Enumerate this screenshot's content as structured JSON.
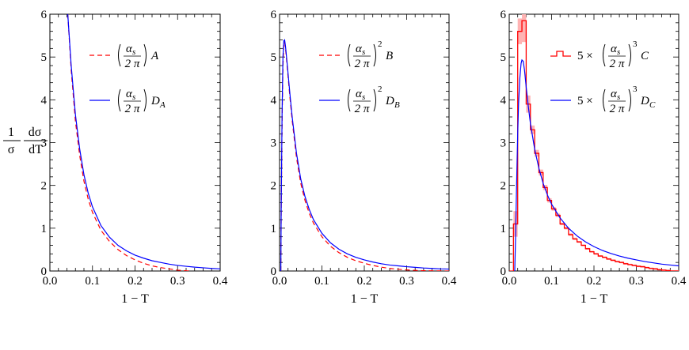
{
  "y_axis_label": {
    "numerator": "1",
    "fraction_top": "dσ",
    "denominator_left": "σ",
    "denominator_right": "dT"
  },
  "chart_data": [
    {
      "type": "line",
      "panel": "left",
      "xlabel": "1 − T",
      "ylabel": "(1/σ) dσ/dT",
      "xlim": [
        0.0,
        0.4
      ],
      "ylim": [
        0,
        6
      ],
      "xticks": [
        "0.0",
        "0.1",
        "0.2",
        "0.3",
        "0.4"
      ],
      "yticks": [
        "0",
        "1",
        "2",
        "3",
        "4",
        "5",
        "6"
      ],
      "grid": false,
      "legend_position": "top-right",
      "series": [
        {
          "name": "(αs/2π) A",
          "style": "dashed",
          "color": "#ff0000",
          "x": [
            0.042,
            0.05,
            0.06,
            0.07,
            0.08,
            0.09,
            0.1,
            0.12,
            0.14,
            0.16,
            0.18,
            0.2,
            0.22,
            0.24,
            0.26,
            0.28,
            0.3,
            0.32,
            0.33
          ],
          "y": [
            6.0,
            4.7,
            3.5,
            2.7,
            2.1,
            1.68,
            1.37,
            0.95,
            0.69,
            0.5,
            0.36,
            0.26,
            0.18,
            0.12,
            0.08,
            0.05,
            0.02,
            0.005,
            0.0
          ]
        },
        {
          "name": "(αs/2π) DA",
          "style": "solid",
          "color": "#0000ff",
          "x": [
            0.042,
            0.05,
            0.06,
            0.07,
            0.08,
            0.09,
            0.1,
            0.12,
            0.14,
            0.16,
            0.18,
            0.2,
            0.22,
            0.24,
            0.26,
            0.28,
            0.3,
            0.32,
            0.34,
            0.36,
            0.38,
            0.4
          ],
          "y": [
            6.0,
            4.8,
            3.65,
            2.85,
            2.25,
            1.82,
            1.5,
            1.06,
            0.79,
            0.6,
            0.47,
            0.37,
            0.3,
            0.24,
            0.2,
            0.16,
            0.13,
            0.11,
            0.09,
            0.075,
            0.06,
            0.05
          ]
        }
      ],
      "legend": [
        {
          "prefix": "",
          "power": "",
          "label": "A",
          "subscript": ""
        },
        {
          "prefix": "",
          "power": "",
          "label": "D",
          "subscript": "A"
        }
      ]
    },
    {
      "type": "line",
      "panel": "middle",
      "xlabel": "1 − T",
      "xlim": [
        0.0,
        0.4
      ],
      "ylim": [
        0,
        6
      ],
      "xticks": [
        "0.0",
        "0.1",
        "0.2",
        "0.3",
        "0.4"
      ],
      "yticks": [
        "0",
        "1",
        "2",
        "3",
        "4",
        "5",
        "6"
      ],
      "grid": false,
      "legend_position": "top-right",
      "series": [
        {
          "name": "(αs/2π)² B",
          "style": "dashed",
          "color": "#ff0000",
          "x": [
            0.003,
            0.004,
            0.006,
            0.008,
            0.01,
            0.012,
            0.014,
            0.016,
            0.02,
            0.025,
            0.03,
            0.04,
            0.05,
            0.06,
            0.07,
            0.08,
            0.1,
            0.12,
            0.14,
            0.16,
            0.18,
            0.2,
            0.22,
            0.24,
            0.26,
            0.28,
            0.3,
            0.32,
            0.34,
            0.36,
            0.38,
            0.4
          ],
          "y": [
            0.0,
            1.5,
            3.5,
            4.8,
            5.3,
            5.35,
            5.2,
            5.0,
            4.55,
            4.0,
            3.5,
            2.65,
            2.05,
            1.65,
            1.35,
            1.12,
            0.8,
            0.58,
            0.43,
            0.32,
            0.24,
            0.18,
            0.13,
            0.09,
            0.06,
            0.04,
            0.025,
            0.015,
            0.008,
            0.004,
            0.002,
            0.0
          ]
        },
        {
          "name": "(αs/2π)² DB",
          "style": "solid",
          "color": "#0000ff",
          "x": [
            0.003,
            0.004,
            0.006,
            0.008,
            0.01,
            0.012,
            0.014,
            0.016,
            0.02,
            0.025,
            0.03,
            0.04,
            0.05,
            0.06,
            0.07,
            0.08,
            0.1,
            0.12,
            0.14,
            0.16,
            0.18,
            0.2,
            0.22,
            0.24,
            0.26,
            0.28,
            0.3,
            0.32,
            0.34,
            0.36,
            0.38,
            0.4
          ],
          "y": [
            0.0,
            1.6,
            3.7,
            5.0,
            5.38,
            5.4,
            5.25,
            5.05,
            4.62,
            4.08,
            3.58,
            2.75,
            2.15,
            1.74,
            1.44,
            1.2,
            0.88,
            0.66,
            0.51,
            0.4,
            0.32,
            0.26,
            0.21,
            0.17,
            0.14,
            0.12,
            0.1,
            0.085,
            0.07,
            0.06,
            0.05,
            0.045
          ]
        }
      ],
      "legend": [
        {
          "prefix": "",
          "power": "2",
          "label": "B",
          "subscript": ""
        },
        {
          "prefix": "",
          "power": "2",
          "label": "D",
          "subscript": "B"
        }
      ]
    },
    {
      "type": "line",
      "panel": "right",
      "xlabel": "1 − T",
      "xlim": [
        0.0,
        0.4
      ],
      "ylim": [
        0,
        6
      ],
      "xticks": [
        "0.0",
        "0.1",
        "0.2",
        "0.3",
        "0.4"
      ],
      "yticks": [
        "0",
        "1",
        "2",
        "3",
        "4",
        "5",
        "6"
      ],
      "grid": false,
      "legend_position": "top-right",
      "series": [
        {
          "name": "5 × (αs/2π)³ C",
          "style": "step-histogram",
          "color": "#ff0000",
          "bin_width": 0.01,
          "bin_starts": [
            0.0,
            0.01,
            0.02,
            0.03,
            0.04,
            0.05,
            0.06,
            0.07,
            0.08,
            0.09,
            0.1,
            0.11,
            0.12,
            0.13,
            0.14,
            0.15,
            0.16,
            0.17,
            0.18,
            0.19,
            0.2,
            0.21,
            0.22,
            0.23,
            0.24,
            0.25,
            0.26,
            0.27,
            0.28,
            0.29,
            0.3,
            0.31,
            0.32,
            0.33,
            0.34,
            0.35,
            0.36,
            0.37,
            0.38,
            0.39
          ],
          "values": [
            0.0,
            1.1,
            5.6,
            5.85,
            3.9,
            3.3,
            2.75,
            2.3,
            1.95,
            1.65,
            1.45,
            1.3,
            1.1,
            1.0,
            0.85,
            0.75,
            0.68,
            0.6,
            0.52,
            0.45,
            0.4,
            0.35,
            0.32,
            0.28,
            0.25,
            0.22,
            0.2,
            0.17,
            0.15,
            0.13,
            0.11,
            0.1,
            0.08,
            0.06,
            0.05,
            0.03,
            0.02,
            0.01,
            0.0,
            0.0
          ],
          "errors": [
            0.0,
            0.3,
            0.3,
            0.5,
            0.2,
            0.1,
            0.08,
            0.07,
            0.06,
            0.05,
            0.04,
            0.04,
            0.03,
            0.03,
            0.03,
            0.03,
            0.02,
            0.02,
            0.02,
            0.02,
            0.02,
            0.02,
            0.02,
            0.02,
            0.02,
            0.02,
            0.02,
            0.02,
            0.02,
            0.02,
            0.02,
            0.02,
            0.02,
            0.02,
            0.02,
            0.02,
            0.02,
            0.02,
            0.02,
            0.02
          ]
        },
        {
          "name": "5 × (αs/2π)³ DC",
          "style": "solid",
          "color": "#0000ff",
          "x": [
            0.013,
            0.015,
            0.018,
            0.02,
            0.022,
            0.025,
            0.028,
            0.03,
            0.033,
            0.036,
            0.04,
            0.045,
            0.05,
            0.06,
            0.07,
            0.08,
            0.09,
            0.1,
            0.12,
            0.14,
            0.16,
            0.18,
            0.2,
            0.22,
            0.24,
            0.26,
            0.28,
            0.3,
            0.32,
            0.34,
            0.36,
            0.38,
            0.4
          ],
          "y": [
            0.0,
            0.8,
            2.3,
            3.2,
            3.9,
            4.5,
            4.85,
            4.93,
            4.9,
            4.7,
            4.3,
            3.85,
            3.45,
            2.85,
            2.4,
            2.05,
            1.78,
            1.56,
            1.24,
            1.0,
            0.82,
            0.68,
            0.57,
            0.48,
            0.41,
            0.35,
            0.3,
            0.26,
            0.22,
            0.19,
            0.16,
            0.14,
            0.12
          ]
        }
      ],
      "legend": [
        {
          "prefix": "5 ×",
          "power": "3",
          "label": "C",
          "subscript": ""
        },
        {
          "prefix": "5 ×",
          "power": "3",
          "label": "D",
          "subscript": "C"
        }
      ]
    }
  ],
  "coupling": {
    "numerator": "α",
    "numerator_sub": "s",
    "denominator": "2 π"
  },
  "colors": {
    "red": "#ff0000",
    "blue": "#0000ff",
    "error_band": "#ffb3b3",
    "axis": "#000000"
  }
}
